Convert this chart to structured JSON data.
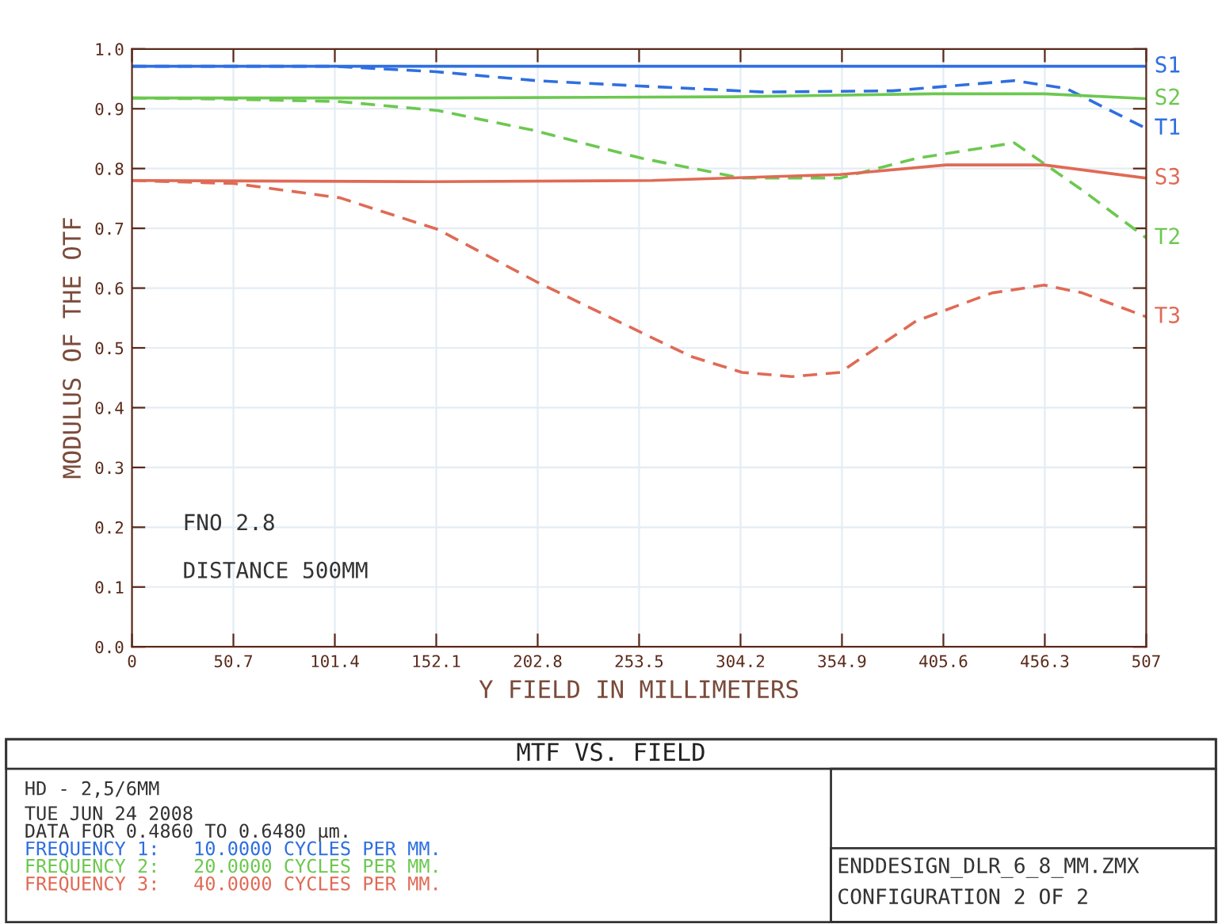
{
  "chart_data": {
    "type": "line",
    "title": "MTF VS. FIELD",
    "xlabel": "Y FIELD IN MILLIMETERS",
    "ylabel": "MODULUS OF THE OTF",
    "xlim": [
      0,
      507
    ],
    "xticks": [
      0,
      50.7,
      101.4,
      152.1,
      202.8,
      253.5,
      304.2,
      354.9,
      405.6,
      456.3,
      507
    ],
    "ylim": [
      0,
      1
    ],
    "yticks": [
      {
        "value": 0,
        "label": "0.0"
      },
      0.1,
      0.2,
      0.3,
      0.4,
      0.5,
      0.6,
      0.7,
      0.8,
      0.9,
      {
        "value": 1,
        "label": "1.0"
      }
    ],
    "grid": true,
    "legend": false,
    "marker": "none",
    "series": [
      {
        "name": "S1",
        "color": "#2f6fe0",
        "line_style": "solid",
        "x": [
          0,
          250,
          400,
          507
        ],
        "values": [
          0.971,
          0.971,
          0.971,
          0.971
        ]
      },
      {
        "name": "T1",
        "color": "#2f6fe0",
        "line_style": "dashed",
        "x": [
          0,
          100,
          152,
          202,
          260,
          316,
          380,
          441,
          467,
          507
        ],
        "values": [
          0.971,
          0.971,
          0.962,
          0.947,
          0.937,
          0.928,
          0.93,
          0.947,
          0.934,
          0.867
        ]
      },
      {
        "name": "S2",
        "color": "#6cc850",
        "line_style": "solid",
        "x": [
          0,
          150,
          300,
          400,
          456,
          507
        ],
        "values": [
          0.918,
          0.918,
          0.92,
          0.925,
          0.925,
          0.917
        ]
      },
      {
        "name": "T2",
        "color": "#6cc850",
        "line_style": "dashed",
        "x": [
          0,
          50,
          104,
          153,
          202,
          255,
          305,
          354,
          392,
          441,
          475,
          507
        ],
        "values": [
          0.918,
          0.916,
          0.912,
          0.897,
          0.863,
          0.817,
          0.784,
          0.784,
          0.817,
          0.843,
          0.764,
          0.684
        ]
      },
      {
        "name": "S3",
        "color": "#e06a55",
        "line_style": "solid",
        "x": [
          0,
          150,
          260,
          354,
          407,
          456,
          507
        ],
        "values": [
          0.78,
          0.778,
          0.78,
          0.79,
          0.806,
          0.806,
          0.784
        ]
      },
      {
        "name": "T3",
        "color": "#e06a55",
        "line_style": "dashed",
        "x": [
          0,
          51,
          104,
          153,
          202,
          255,
          280,
          305,
          330,
          354,
          392,
          430,
          456,
          475,
          507
        ],
        "values": [
          0.78,
          0.775,
          0.751,
          0.698,
          0.611,
          0.525,
          0.485,
          0.459,
          0.452,
          0.459,
          0.545,
          0.592,
          0.605,
          0.592,
          0.552
        ]
      }
    ],
    "annotations": [
      "FNO 2.8",
      "DISTANCE 500MM",
      "HD - 2,5/6MM",
      "TUE JUN 24 2008",
      "DATA FOR 0.4860 TO 0.6480 µm.",
      "FREQUENCY 1:   10.0000 CYCLES PER MM.",
      "FREQUENCY 2:   20.0000 CYCLES PER MM.",
      "FREQUENCY 3:   40.0000 CYCLES PER MM.",
      "ENDDESIGN_DLR_6_8_MM.ZMX",
      "CONFIGURATION 2 OF 2"
    ]
  }
}
